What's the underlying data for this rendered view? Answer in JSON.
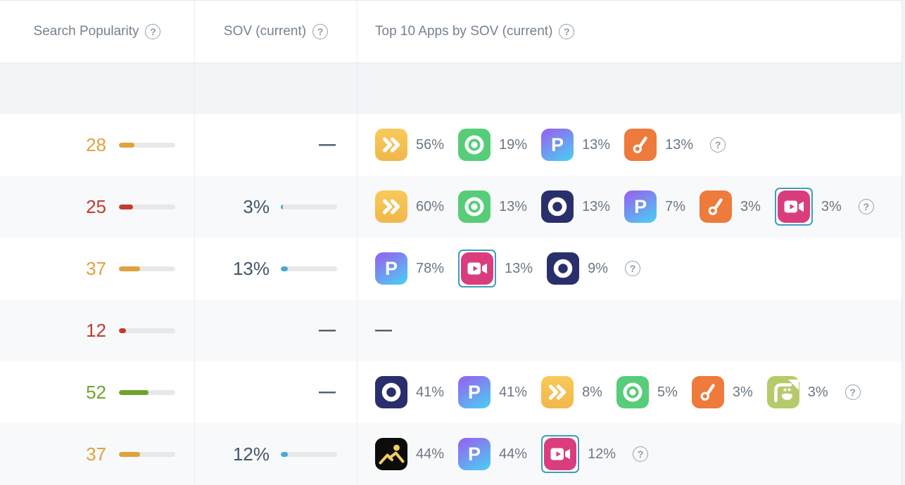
{
  "table": {
    "headers": [
      {
        "label": "Search Popularity"
      },
      {
        "label": "SOV (current)"
      },
      {
        "label": "Top 10 Apps by SOV (current)"
      }
    ],
    "help_glyph": "?",
    "dash": "—",
    "colors": {
      "amber": "#DFA23C",
      "red": "#C23B2E",
      "green": "#71A230",
      "sov_blue": "#4CA7D8",
      "bar_track": "#E8E8E8",
      "selected_outline": "#3D9CBF"
    },
    "icons": {
      "letter_p_glyph": "P"
    },
    "rows": [
      {
        "popularity": {
          "value": 28,
          "color": "amber"
        },
        "sov": {
          "value": null
        },
        "apps": [
          {
            "icon": "fast-forward",
            "sov": "56%"
          },
          {
            "icon": "target",
            "sov": "19%"
          },
          {
            "icon": "letter-p",
            "sov": "13%"
          },
          {
            "icon": "paintbrush",
            "sov": "13%"
          }
        ]
      },
      {
        "popularity": {
          "value": 25,
          "color": "red"
        },
        "sov": {
          "value": "3%",
          "pct": 3
        },
        "apps": [
          {
            "icon": "fast-forward",
            "sov": "60%"
          },
          {
            "icon": "target",
            "sov": "13%"
          },
          {
            "icon": "letter-o",
            "sov": "13%"
          },
          {
            "icon": "letter-p",
            "sov": "7%"
          },
          {
            "icon": "paintbrush",
            "sov": "3%"
          },
          {
            "icon": "video-camera",
            "sov": "3%",
            "selected": true
          }
        ]
      },
      {
        "popularity": {
          "value": 37,
          "color": "amber"
        },
        "sov": {
          "value": "13%",
          "pct": 13
        },
        "apps": [
          {
            "icon": "letter-p",
            "sov": "78%"
          },
          {
            "icon": "video-camera",
            "sov": "13%",
            "selected": true
          },
          {
            "icon": "letter-o",
            "sov": "9%"
          }
        ]
      },
      {
        "popularity": {
          "value": 12,
          "color": "red"
        },
        "sov": {
          "value": null
        },
        "apps": []
      },
      {
        "popularity": {
          "value": 52,
          "color": "green"
        },
        "sov": {
          "value": null
        },
        "apps": [
          {
            "icon": "letter-o",
            "sov": "41%"
          },
          {
            "icon": "letter-p",
            "sov": "41%"
          },
          {
            "icon": "fast-forward",
            "sov": "8%"
          },
          {
            "icon": "target",
            "sov": "5%"
          },
          {
            "icon": "paintbrush",
            "sov": "3%"
          },
          {
            "icon": "smiley",
            "sov": "3%"
          }
        ]
      },
      {
        "popularity": {
          "value": 37,
          "color": "amber"
        },
        "sov": {
          "value": "12%",
          "pct": 12
        },
        "apps": [
          {
            "icon": "photo",
            "sov": "44%"
          },
          {
            "icon": "letter-p",
            "sov": "44%"
          },
          {
            "icon": "video-camera",
            "sov": "12%",
            "selected": true
          }
        ]
      }
    ]
  }
}
